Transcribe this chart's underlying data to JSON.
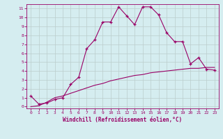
{
  "xlabel": "Windchill (Refroidissement éolien,°C)",
  "x_values": [
    0,
    1,
    2,
    3,
    4,
    5,
    6,
    7,
    8,
    9,
    10,
    11,
    12,
    13,
    14,
    15,
    16,
    17,
    18,
    19,
    20,
    21,
    22,
    23
  ],
  "line1_y": [
    1.2,
    0.3,
    0.4,
    0.8,
    1.0,
    2.5,
    3.3,
    6.5,
    7.5,
    9.5,
    9.5,
    11.2,
    10.2,
    9.2,
    11.2,
    11.2,
    10.3,
    8.3,
    7.3,
    7.3,
    4.8,
    5.5,
    4.2,
    4.1
  ],
  "line2_y": [
    0.0,
    0.1,
    0.5,
    1.0,
    1.2,
    1.5,
    1.8,
    2.1,
    2.4,
    2.6,
    2.9,
    3.1,
    3.3,
    3.5,
    3.6,
    3.8,
    3.9,
    4.0,
    4.1,
    4.2,
    4.3,
    4.3,
    4.4,
    4.4
  ],
  "line_color": "#990066",
  "bg_color": "#d5edf0",
  "grid_color": "#bbcccc",
  "ylim_min": -0.2,
  "ylim_max": 11.5,
  "xlim_min": -0.5,
  "xlim_max": 23.5,
  "yticks": [
    0,
    1,
    2,
    3,
    4,
    5,
    6,
    7,
    8,
    9,
    10,
    11
  ],
  "xticks": [
    0,
    1,
    2,
    3,
    4,
    5,
    6,
    7,
    8,
    9,
    10,
    11,
    12,
    13,
    14,
    15,
    16,
    17,
    18,
    19,
    20,
    21,
    22,
    23
  ]
}
